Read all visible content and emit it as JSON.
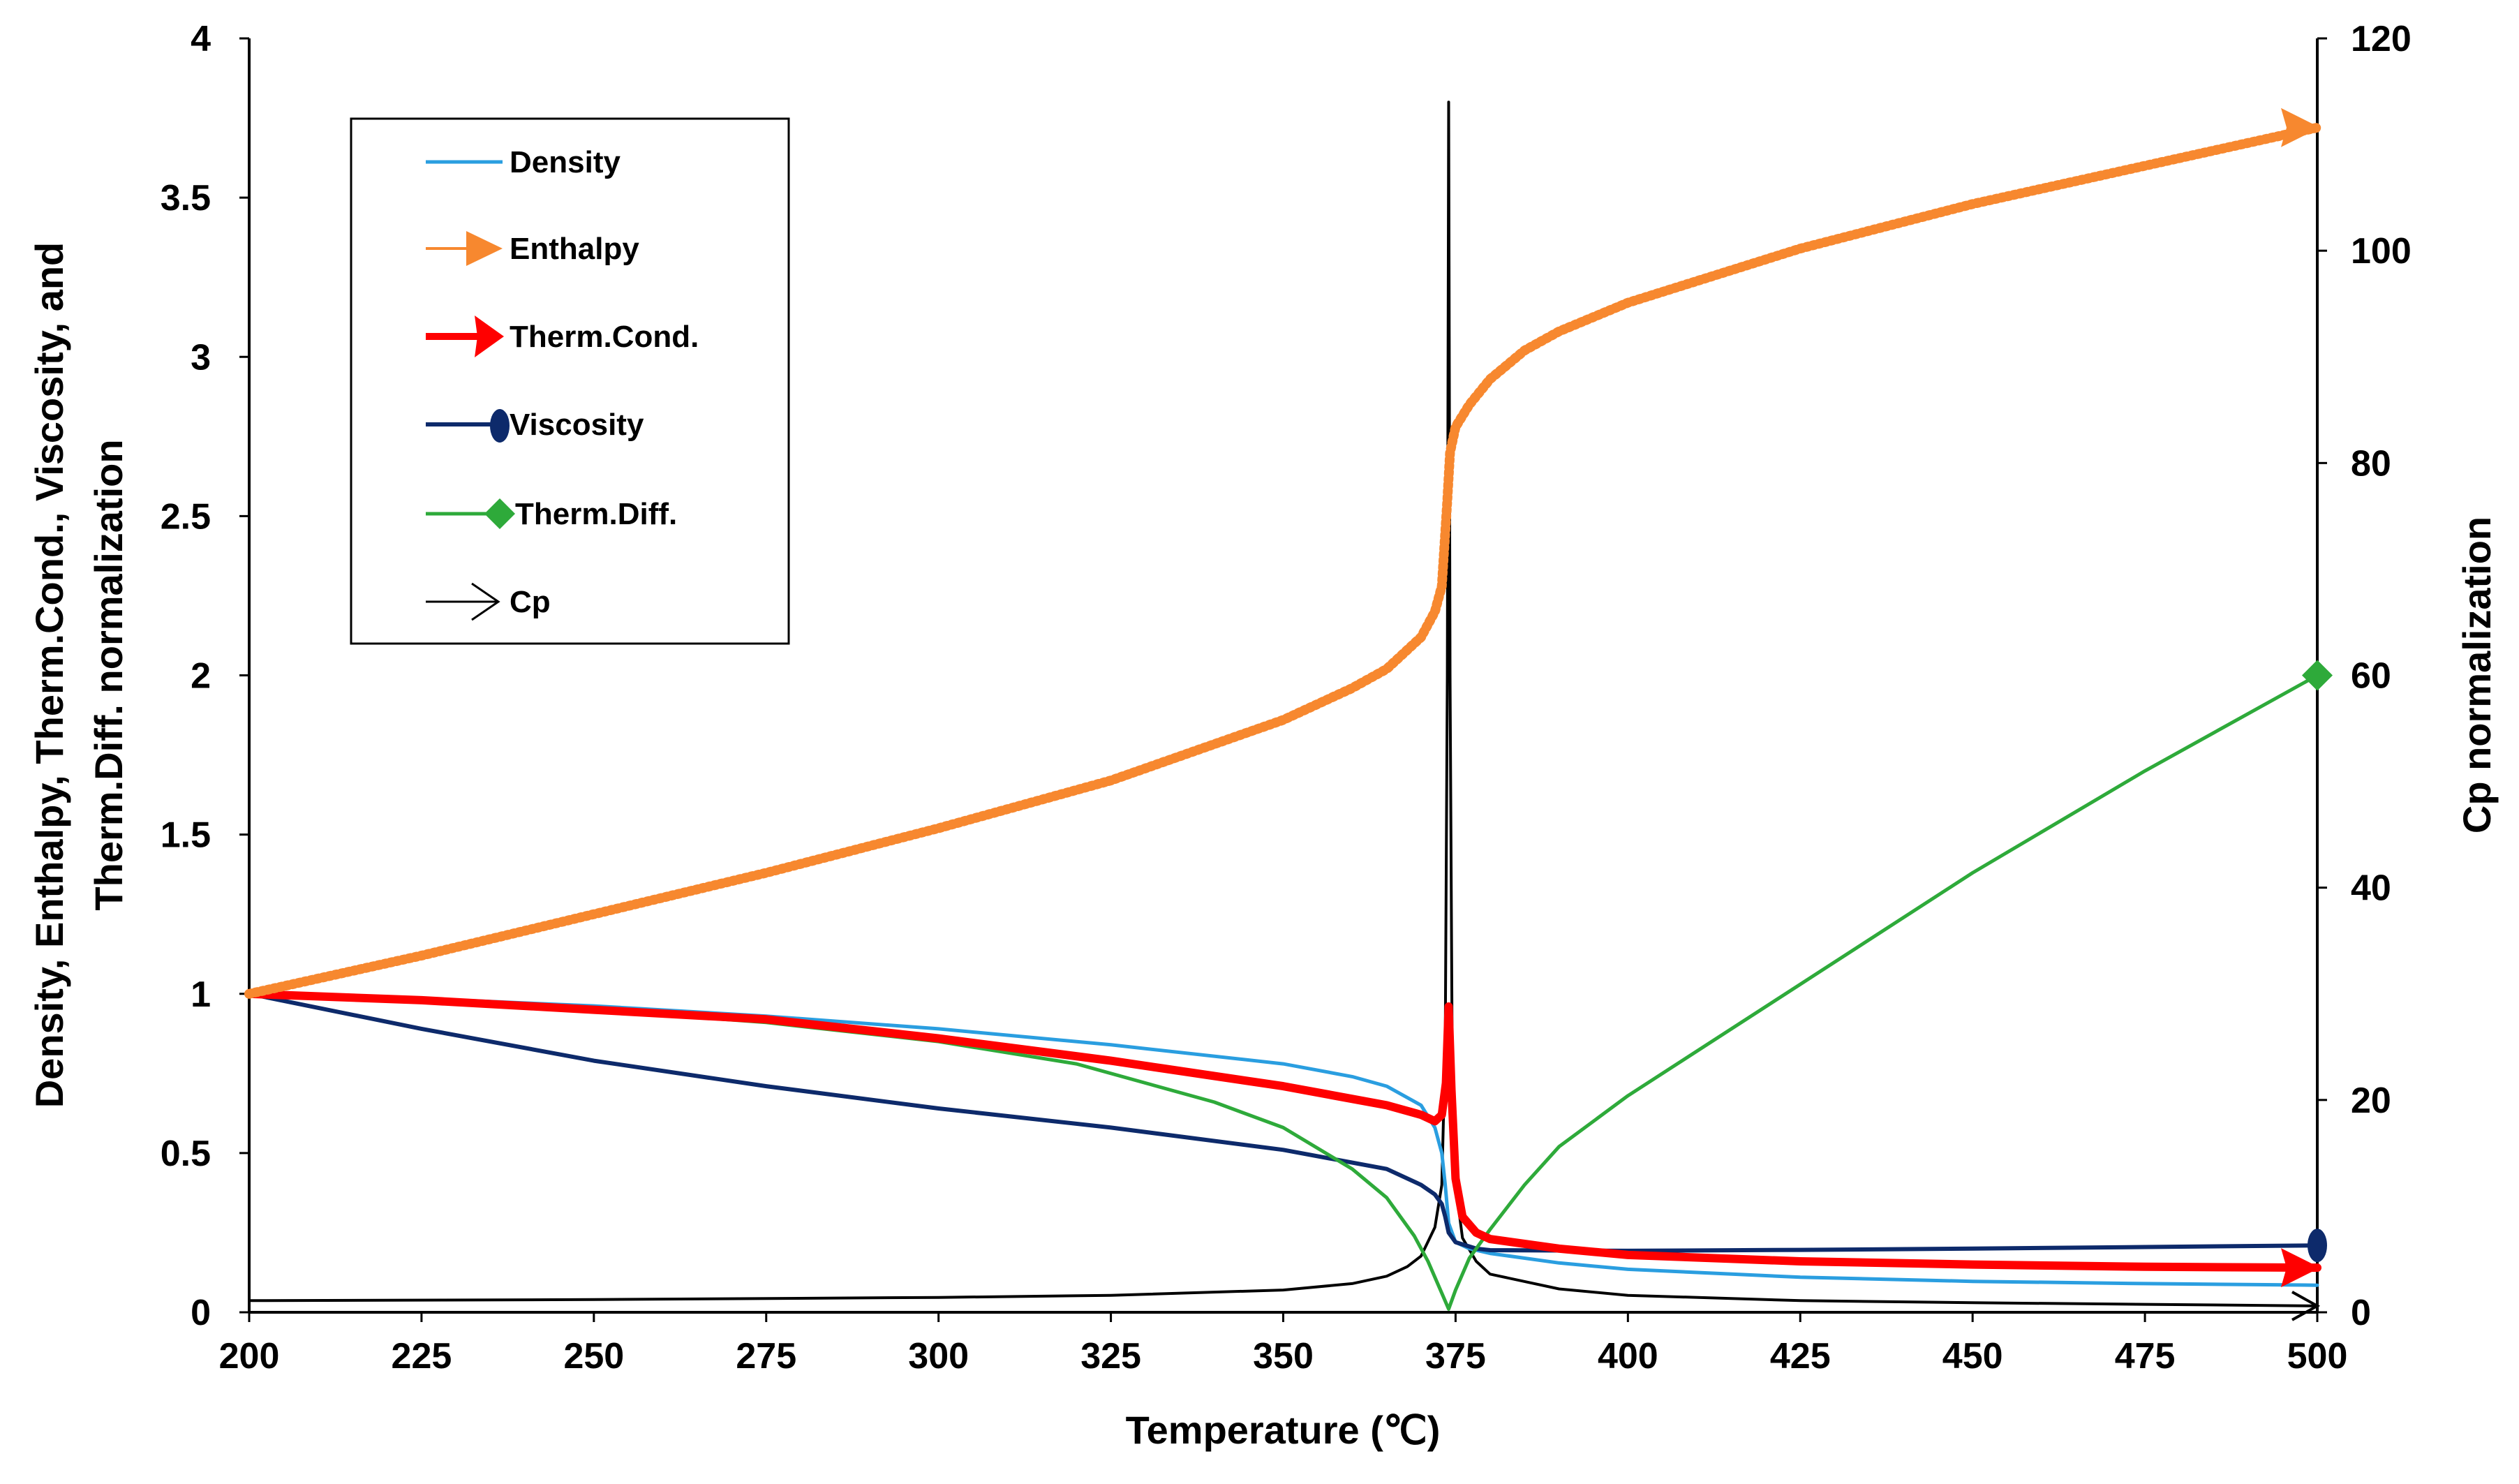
{
  "chart_data": {
    "type": "line",
    "x_axis": {
      "label": "Temperature (℃)",
      "range": [
        200,
        500
      ],
      "ticks": [
        "200",
        "225",
        "250",
        "275",
        "300",
        "325",
        "350",
        "375",
        "400",
        "425",
        "450",
        "475",
        "500"
      ]
    },
    "y_axis_left": {
      "label_line1": "Density, Enthalpy, Therm.Cond., Viscosity, and",
      "label_line2": "Therm.Diff. normalization",
      "range": [
        0,
        4
      ],
      "ticks": [
        "0",
        "0.5",
        "1",
        "1.5",
        "2",
        "2.5",
        "3",
        "3.5",
        "4"
      ]
    },
    "y_axis_right": {
      "label": "Cp normalization",
      "range": [
        0,
        120
      ],
      "ticks": [
        "0",
        "20",
        "40",
        "60",
        "80",
        "100",
        "120"
      ]
    },
    "grid": false,
    "legend_position": "top-left",
    "critical_temperature": 374,
    "series": [
      {
        "name": "Density",
        "axis": "left",
        "color": "#2a9ee0",
        "marker": "none",
        "points": [
          [
            200,
            1
          ],
          [
            225,
            0.985
          ],
          [
            250,
            0.962
          ],
          [
            275,
            0.93
          ],
          [
            300,
            0.89
          ],
          [
            325,
            0.84
          ],
          [
            350,
            0.78
          ],
          [
            360,
            0.74
          ],
          [
            365,
            0.71
          ],
          [
            370,
            0.65
          ],
          [
            372,
            0.58
          ],
          [
            373,
            0.5
          ],
          [
            373.5,
            0.4
          ],
          [
            374,
            0.28
          ],
          [
            375,
            0.22
          ],
          [
            377,
            0.2
          ],
          [
            380,
            0.185
          ],
          [
            390,
            0.155
          ],
          [
            400,
            0.135
          ],
          [
            425,
            0.11
          ],
          [
            450,
            0.097
          ],
          [
            475,
            0.09
          ],
          [
            500,
            0.085
          ]
        ]
      },
      {
        "name": "Enthalpy",
        "axis": "left",
        "color": "#f7882f",
        "marker": "arrow",
        "points": [
          [
            200,
            1
          ],
          [
            225,
            1.12
          ],
          [
            250,
            1.25
          ],
          [
            275,
            1.38
          ],
          [
            300,
            1.52
          ],
          [
            325,
            1.67
          ],
          [
            350,
            1.86
          ],
          [
            360,
            1.96
          ],
          [
            365,
            2.02
          ],
          [
            370,
            2.12
          ],
          [
            372,
            2.2
          ],
          [
            373,
            2.28
          ],
          [
            373.8,
            2.55
          ],
          [
            374.2,
            2.7
          ],
          [
            375,
            2.78
          ],
          [
            377,
            2.85
          ],
          [
            380,
            2.93
          ],
          [
            385,
            3.02
          ],
          [
            390,
            3.08
          ],
          [
            400,
            3.17
          ],
          [
            425,
            3.34
          ],
          [
            450,
            3.48
          ],
          [
            475,
            3.6
          ],
          [
            500,
            3.72
          ]
        ]
      },
      {
        "name": "Therm.Cond.",
        "axis": "left",
        "color": "#ff0000",
        "marker": "arrow",
        "points": [
          [
            200,
            1
          ],
          [
            225,
            0.98
          ],
          [
            250,
            0.95
          ],
          [
            275,
            0.92
          ],
          [
            300,
            0.86
          ],
          [
            325,
            0.79
          ],
          [
            350,
            0.71
          ],
          [
            365,
            0.65
          ],
          [
            370,
            0.62
          ],
          [
            372,
            0.6
          ],
          [
            373,
            0.62
          ],
          [
            373.6,
            0.72
          ],
          [
            374,
            0.96
          ],
          [
            374.4,
            0.7
          ],
          [
            375,
            0.42
          ],
          [
            376,
            0.3
          ],
          [
            378,
            0.25
          ],
          [
            380,
            0.23
          ],
          [
            390,
            0.2
          ],
          [
            400,
            0.18
          ],
          [
            425,
            0.16
          ],
          [
            450,
            0.15
          ],
          [
            475,
            0.143
          ],
          [
            500,
            0.14
          ]
        ]
      },
      {
        "name": "Viscosity",
        "axis": "left",
        "color": "#0d2a6b",
        "marker": "circle",
        "points": [
          [
            200,
            1
          ],
          [
            225,
            0.89
          ],
          [
            250,
            0.79
          ],
          [
            275,
            0.71
          ],
          [
            300,
            0.64
          ],
          [
            325,
            0.58
          ],
          [
            350,
            0.51
          ],
          [
            365,
            0.45
          ],
          [
            370,
            0.4
          ],
          [
            372,
            0.37
          ],
          [
            373,
            0.34
          ],
          [
            373.5,
            0.3
          ],
          [
            374,
            0.25
          ],
          [
            375,
            0.22
          ],
          [
            378,
            0.2
          ],
          [
            380,
            0.195
          ],
          [
            400,
            0.193
          ],
          [
            425,
            0.196
          ],
          [
            450,
            0.2
          ],
          [
            475,
            0.205
          ],
          [
            500,
            0.21
          ]
        ]
      },
      {
        "name": "Therm.Diff.",
        "axis": "left",
        "color": "#2eaa3a",
        "marker": "diamond",
        "points": [
          [
            200,
            1
          ],
          [
            225,
            0.98
          ],
          [
            250,
            0.95
          ],
          [
            275,
            0.91
          ],
          [
            300,
            0.85
          ],
          [
            320,
            0.78
          ],
          [
            340,
            0.66
          ],
          [
            350,
            0.58
          ],
          [
            360,
            0.45
          ],
          [
            365,
            0.36
          ],
          [
            369,
            0.24
          ],
          [
            371,
            0.16
          ],
          [
            373,
            0.06
          ],
          [
            374,
            0.01
          ],
          [
            375,
            0.07
          ],
          [
            377,
            0.17
          ],
          [
            380,
            0.26
          ],
          [
            385,
            0.4
          ],
          [
            390,
            0.52
          ],
          [
            400,
            0.68
          ],
          [
            425,
            1.03
          ],
          [
            450,
            1.38
          ],
          [
            475,
            1.7
          ],
          [
            500,
            2
          ]
        ]
      },
      {
        "name": "Cp",
        "axis": "right",
        "color": "#000000",
        "marker": "open-arrow",
        "points": [
          [
            200,
            1.1
          ],
          [
            250,
            1.2
          ],
          [
            300,
            1.4
          ],
          [
            325,
            1.6
          ],
          [
            350,
            2.1
          ],
          [
            360,
            2.7
          ],
          [
            365,
            3.4
          ],
          [
            368,
            4.3
          ],
          [
            370,
            5.3
          ],
          [
            372,
            8
          ],
          [
            373,
            12
          ],
          [
            373.5,
            25
          ],
          [
            373.8,
            60
          ],
          [
            374,
            114
          ],
          [
            374.2,
            60
          ],
          [
            374.5,
            25
          ],
          [
            375,
            12
          ],
          [
            376,
            7
          ],
          [
            378,
            4.8
          ],
          [
            380,
            3.6
          ],
          [
            390,
            2.2
          ],
          [
            400,
            1.6
          ],
          [
            425,
            1.1
          ],
          [
            450,
            0.9
          ],
          [
            475,
            0.75
          ],
          [
            500,
            0.6
          ]
        ]
      }
    ]
  }
}
